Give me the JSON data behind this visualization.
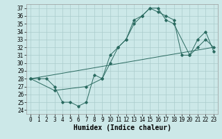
{
  "title": "",
  "xlabel": "Humidex (Indice chaleur)",
  "bg_color": "#cce8e8",
  "grid_color": "#aacccc",
  "line_color": "#2a6a60",
  "xlim": [
    -0.5,
    23.5
  ],
  "ylim": [
    23.5,
    37.5
  ],
  "xticks": [
    0,
    1,
    2,
    3,
    4,
    5,
    6,
    7,
    8,
    9,
    10,
    11,
    12,
    13,
    14,
    15,
    16,
    17,
    18,
    19,
    20,
    21,
    22,
    23
  ],
  "yticks": [
    24,
    25,
    26,
    27,
    28,
    29,
    30,
    31,
    32,
    33,
    34,
    35,
    36,
    37
  ],
  "line1_x": [
    0,
    1,
    2,
    3,
    4,
    5,
    6,
    7,
    8,
    9,
    10,
    11,
    12,
    13,
    14,
    15,
    16,
    17,
    18,
    19,
    20,
    21,
    22,
    23
  ],
  "line1_y": [
    28,
    28,
    28,
    27,
    25,
    25,
    24.5,
    25,
    28.5,
    28,
    31,
    32,
    33,
    35.5,
    36,
    37,
    36.5,
    36,
    35.5,
    31,
    31,
    33,
    34,
    31.5
  ],
  "line2_x": [
    0,
    3,
    7,
    9,
    10,
    11,
    12,
    13,
    14,
    15,
    16,
    17,
    18,
    20,
    21,
    22,
    23
  ],
  "line2_y": [
    28,
    26.5,
    27,
    28,
    30,
    32,
    33,
    35,
    36,
    37,
    37,
    35.5,
    35,
    31,
    32,
    33,
    32
  ],
  "line3_x": [
    0,
    23
  ],
  "line3_y": [
    28,
    32
  ],
  "font_size_xlabel": 7,
  "tick_fontsize": 5.5
}
